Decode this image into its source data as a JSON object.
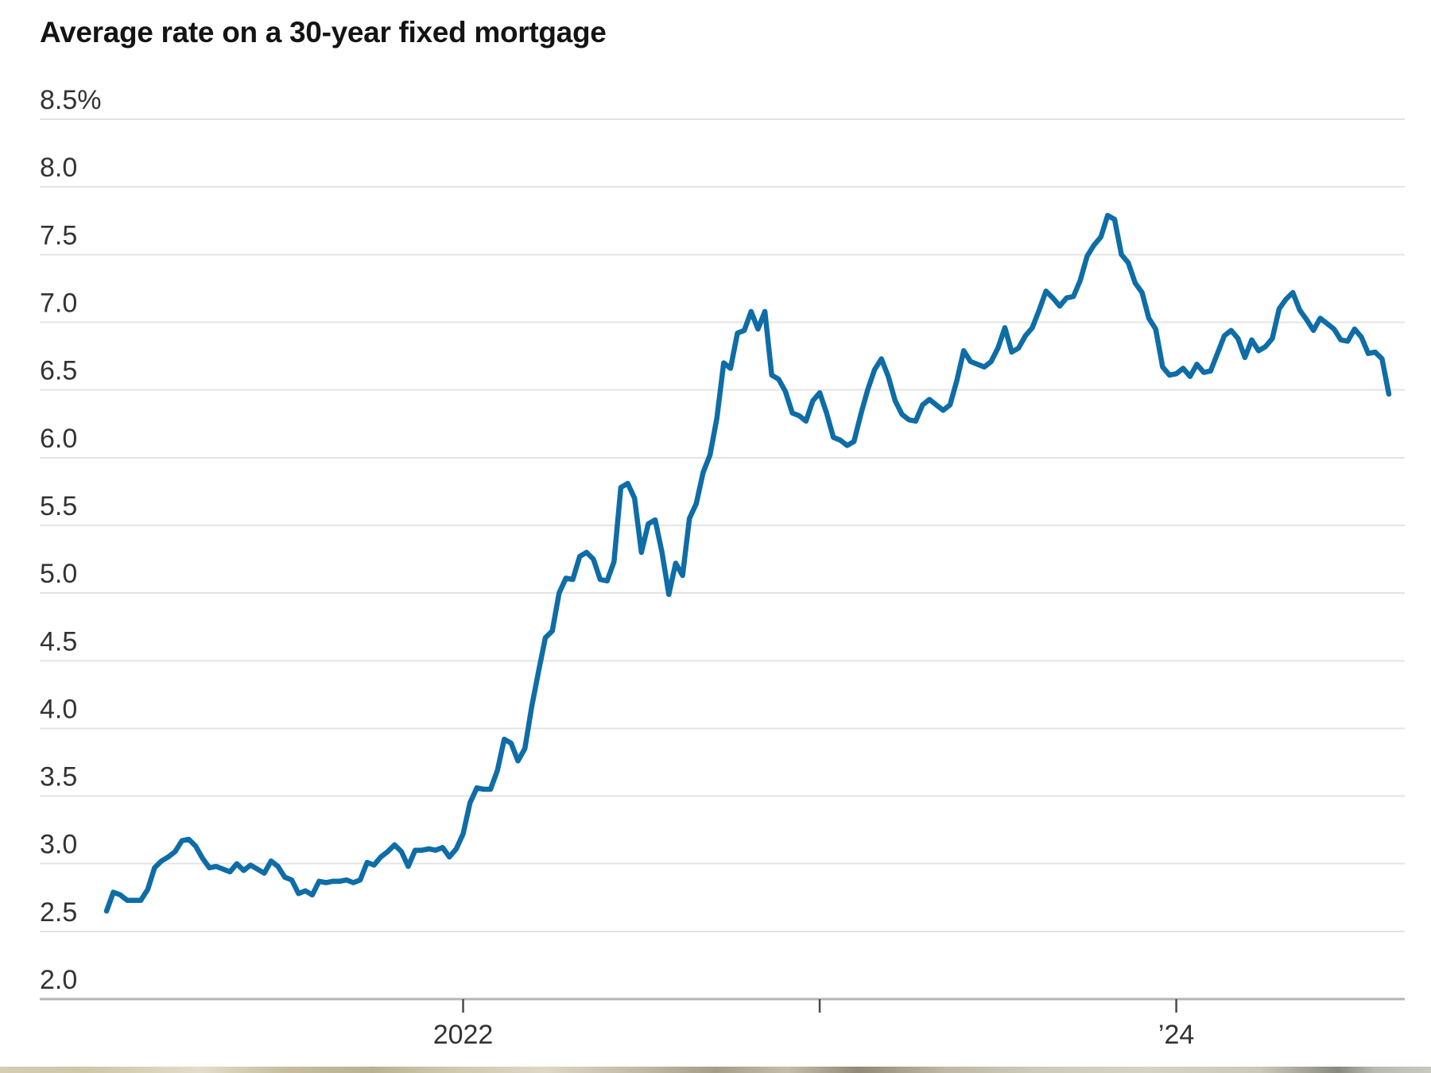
{
  "chart_data": {
    "type": "line",
    "title": "Average rate on a 30-year fixed mortgage",
    "unit": "percent",
    "ylim": [
      2.0,
      8.5
    ],
    "grid": true,
    "legend": "none",
    "y_ticks": [
      {
        "v": 8.5,
        "label": "8.5%"
      },
      {
        "v": 8.0,
        "label": "8.0"
      },
      {
        "v": 7.5,
        "label": "7.5"
      },
      {
        "v": 7.0,
        "label": "7.0"
      },
      {
        "v": 6.5,
        "label": "6.5"
      },
      {
        "v": 6.0,
        "label": "6.0"
      },
      {
        "v": 5.5,
        "label": "5.5"
      },
      {
        "v": 5.0,
        "label": "5.0"
      },
      {
        "v": 4.5,
        "label": "4.5"
      },
      {
        "v": 4.0,
        "label": "4.0"
      },
      {
        "v": 3.5,
        "label": "3.5"
      },
      {
        "v": 3.0,
        "label": "3.0"
      },
      {
        "v": 2.5,
        "label": "2.5"
      },
      {
        "v": 2.0,
        "label": "2.0"
      }
    ],
    "x_ticks": [
      {
        "week_index": 52,
        "label": "2022"
      },
      {
        "week_index": 104,
        "label": ""
      },
      {
        "week_index": 156,
        "label": "’24"
      }
    ],
    "series": [
      {
        "name": "30-year fixed mortgage rate",
        "cadence": "weekly",
        "values": [
          2.65,
          2.79,
          2.77,
          2.73,
          2.73,
          2.73,
          2.81,
          2.97,
          3.02,
          3.05,
          3.09,
          3.17,
          3.18,
          3.13,
          3.04,
          2.97,
          2.98,
          2.96,
          2.94,
          3.0,
          2.95,
          2.99,
          2.96,
          2.93,
          3.02,
          2.98,
          2.9,
          2.88,
          2.78,
          2.8,
          2.77,
          2.87,
          2.86,
          2.87,
          2.87,
          2.88,
          2.86,
          2.88,
          3.01,
          2.99,
          3.05,
          3.09,
          3.14,
          3.09,
          2.98,
          3.1,
          3.1,
          3.11,
          3.1,
          3.12,
          3.05,
          3.11,
          3.22,
          3.45,
          3.56,
          3.55,
          3.55,
          3.69,
          3.92,
          3.89,
          3.76,
          3.85,
          4.16,
          4.42,
          4.67,
          4.72,
          5.0,
          5.11,
          5.1,
          5.27,
          5.3,
          5.25,
          5.1,
          5.09,
          5.23,
          5.78,
          5.81,
          5.7,
          5.3,
          5.51,
          5.54,
          5.3,
          4.99,
          5.22,
          5.13,
          5.55,
          5.66,
          5.89,
          6.02,
          6.29,
          6.7,
          6.66,
          6.92,
          6.94,
          7.08,
          6.95,
          7.08,
          6.61,
          6.58,
          6.49,
          6.33,
          6.31,
          6.27,
          6.42,
          6.48,
          6.33,
          6.15,
          6.13,
          6.09,
          6.12,
          6.32,
          6.5,
          6.65,
          6.73,
          6.6,
          6.42,
          6.32,
          6.28,
          6.27,
          6.39,
          6.43,
          6.39,
          6.35,
          6.39,
          6.57,
          6.79,
          6.71,
          6.69,
          6.67,
          6.71,
          6.81,
          6.96,
          6.78,
          6.81,
          6.9,
          6.96,
          7.09,
          7.23,
          7.18,
          7.12,
          7.18,
          7.19,
          7.31,
          7.49,
          7.57,
          7.63,
          7.79,
          7.76,
          7.5,
          7.44,
          7.29,
          7.22,
          7.03,
          6.95,
          6.67,
          6.61,
          6.62,
          6.66,
          6.6,
          6.69,
          6.63,
          6.64,
          6.77,
          6.9,
          6.94,
          6.88,
          6.74,
          6.87,
          6.79,
          6.82,
          6.88,
          7.1,
          7.17,
          7.22,
          7.09,
          7.02,
          6.94,
          7.03,
          6.99,
          6.95,
          6.87,
          6.86,
          6.95,
          6.89,
          6.77,
          6.78,
          6.73,
          6.47
        ]
      }
    ]
  },
  "colors": {
    "line": "#0e6da6",
    "grid": "#e4e4e4",
    "baseline": "#b5b5b5",
    "tick": "#4a4a4a",
    "axis_label": "#333333",
    "title": "#141414",
    "background": "#ffffff"
  }
}
